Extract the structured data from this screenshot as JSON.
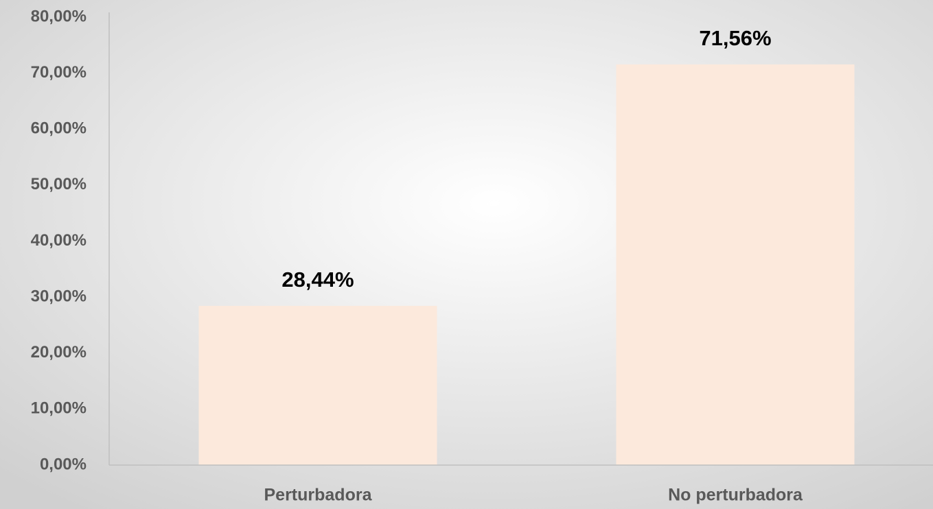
{
  "chart_data": {
    "type": "bar",
    "categories": [
      "Perturbadora",
      "No perturbadora"
    ],
    "values": [
      28.44,
      71.56
    ],
    "value_labels": [
      "28,44%",
      "71,56%"
    ],
    "color": "#fce9dc",
    "ylim": [
      0,
      80
    ],
    "yticks": [
      {
        "value": 0,
        "label": "0,00%"
      },
      {
        "value": 10,
        "label": "10,00%"
      },
      {
        "value": 20,
        "label": "20,00%"
      },
      {
        "value": 30,
        "label": "30,00%"
      },
      {
        "value": 40,
        "label": "40,00%"
      },
      {
        "value": 50,
        "label": "50,00%"
      },
      {
        "value": 60,
        "label": "60,00%"
      },
      {
        "value": 70,
        "label": "70,00%"
      },
      {
        "value": 80,
        "label": "80,00%"
      }
    ],
    "grid": false
  }
}
